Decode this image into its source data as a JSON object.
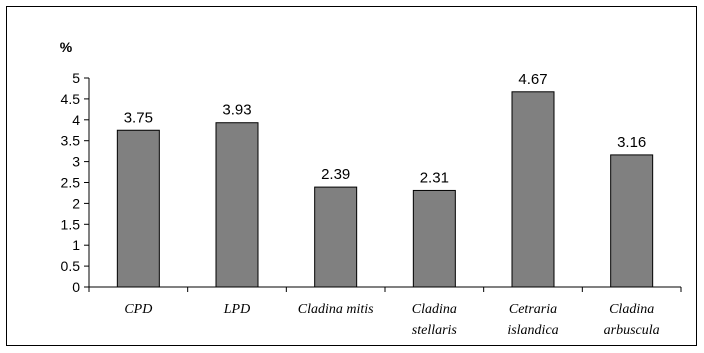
{
  "chart_data": {
    "type": "bar",
    "ylabel": "%",
    "ylim": [
      0,
      5
    ],
    "yticks": [
      "0",
      "0.5",
      "1",
      "1.5",
      "2",
      "2.5",
      "3",
      "3.5",
      "4",
      "4.5",
      "5"
    ],
    "categories": [
      [
        "CPD"
      ],
      [
        "LPD"
      ],
      [
        "Cladina mitis"
      ],
      [
        "Cladina",
        "stellaris"
      ],
      [
        "Cetraria",
        "islandica"
      ],
      [
        "Cladina",
        "arbuscula"
      ]
    ],
    "values": [
      3.75,
      3.93,
      2.39,
      2.31,
      4.67,
      3.16
    ],
    "data_labels": [
      "3.75",
      "3.93",
      "2.39",
      "2.31",
      "4.67",
      "3.16"
    ],
    "bar_color": "#808080",
    "bar_edge_color": "#000000",
    "grid": false,
    "legend": "none"
  }
}
